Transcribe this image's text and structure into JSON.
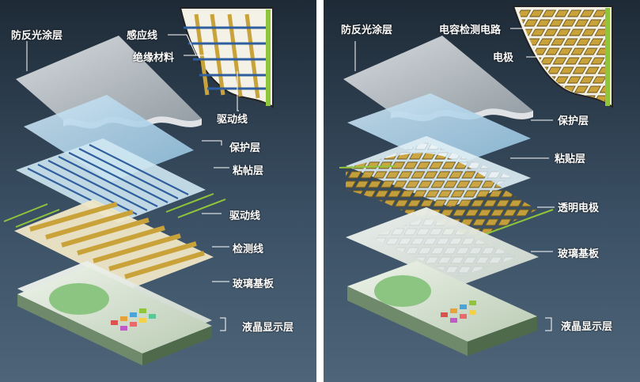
{
  "left_diagram": {
    "labels": {
      "anti_reflective": "防反光涂层",
      "sense_line": "感应线",
      "insulation": "绝缘材料",
      "drive_line_top": "驱动线",
      "protective": "保护层",
      "adhesive": "粘帖层",
      "drive_line": "驱动线",
      "detect_line": "检测线",
      "glass": "玻璃基板",
      "lcd": "液晶显示层"
    }
  },
  "right_diagram": {
    "labels": {
      "anti_reflective": "防反光涂层",
      "capacitive_circuit": "电容检测电路",
      "electrode": "电极",
      "protective": "保护层",
      "adhesive": "粘贴层",
      "transparent_electrode": "透明电极",
      "glass": "玻璃基板",
      "lcd": "液晶显示层"
    }
  },
  "colors": {
    "background_top": "#1e2a36",
    "background_bottom": "#4e6579",
    "leader_line": "#ffffff",
    "gold_electrode": "#c9a23a",
    "green_wire": "#8fc53a",
    "blue_line": "#2f5f9e"
  }
}
